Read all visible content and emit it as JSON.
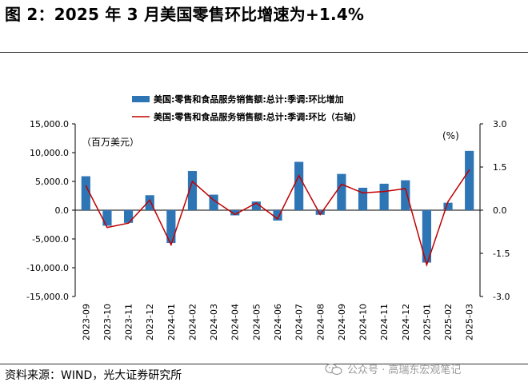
{
  "figure": {
    "title": "图 2：2025 年 3 月美国零售环比增速为+1.4%",
    "source": "资料来源：WIND，光大证券研究所",
    "watermark": "公众号 · 高瑞东宏观笔记"
  },
  "chart_data": {
    "type": "bar+line",
    "categories": [
      "2023-09",
      "2023-10",
      "2023-11",
      "2023-12",
      "2024-01",
      "2024-02",
      "2024-03",
      "2024-04",
      "2024-05",
      "2024-06",
      "2024-07",
      "2024-08",
      "2024-09",
      "2024-10",
      "2024-11",
      "2024-12",
      "2025-01",
      "2025-02",
      "2025-03"
    ],
    "series": [
      {
        "name": "美国:零售和食品服务销售额:总计:季调:环比增加",
        "type": "bar",
        "axis": "left",
        "color": "#2e75b6",
        "values": [
          5900,
          -2700,
          -2200,
          2600,
          -5700,
          6800,
          2700,
          -900,
          1500,
          -1800,
          8400,
          -800,
          6300,
          3900,
          4600,
          5200,
          -9100,
          1300,
          10300
        ]
      },
      {
        "name": "美国:零售和食品服务销售额:总计:季调:环比（右轴）",
        "type": "line",
        "axis": "right",
        "color": "#c00000",
        "values": [
          0.85,
          -0.6,
          -0.45,
          0.35,
          -1.2,
          1.0,
          0.35,
          -0.15,
          0.25,
          -0.3,
          1.2,
          -0.15,
          0.9,
          0.6,
          0.65,
          0.75,
          -1.9,
          0.3,
          1.4
        ]
      }
    ],
    "y_left": {
      "min": -15000,
      "max": 15000,
      "ticks": [
        15000,
        10000,
        5000,
        0,
        -5000,
        -10000,
        -15000
      ],
      "tick_labels": [
        "15,000.0",
        "10,000.0",
        "5,000.0",
        "0.0",
        "-5,000.0",
        "-10,000.0",
        "-15,000.0"
      ],
      "unit": "（百万美元）"
    },
    "y_right": {
      "min": -3.0,
      "max": 3.0,
      "ticks": [
        3.0,
        1.5,
        0.0,
        -1.5,
        -3.0
      ],
      "tick_labels": [
        "3.0",
        "1.5",
        "0.0",
        "-1.5",
        "-3.0"
      ],
      "unit": "(%)"
    }
  }
}
